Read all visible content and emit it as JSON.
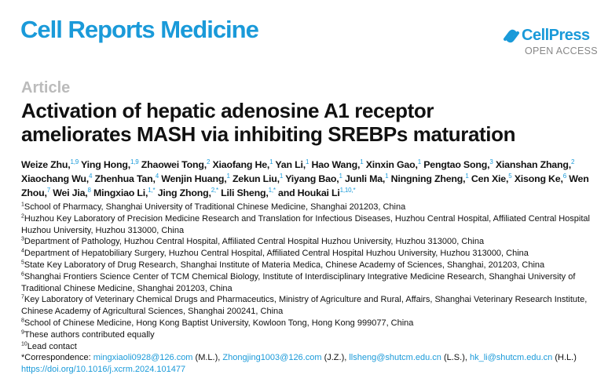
{
  "header": {
    "journal": "Cell Reports Medicine",
    "publisher": "CellPress",
    "access": "OPEN ACCESS",
    "brand_color": "#1a9ad9"
  },
  "article_type": "Article",
  "title_lines": [
    "Activation of hepatic adenosine A1 receptor",
    "ameliorates MASH via inhibiting SREBPs maturation"
  ],
  "authors": [
    {
      "name": "Weize Zhu,",
      "sup": "1,9"
    },
    {
      "name": "Ying Hong,",
      "sup": "1,9"
    },
    {
      "name": "Zhaowei Tong,",
      "sup": "2"
    },
    {
      "name": "Xiaofang He,",
      "sup": "1"
    },
    {
      "name": "Yan Li,",
      "sup": "1"
    },
    {
      "name": "Hao Wang,",
      "sup": "1"
    },
    {
      "name": "Xinxin Gao,",
      "sup": "1"
    },
    {
      "name": "Pengtao Song,",
      "sup": "3"
    },
    {
      "name": "Xianshan Zhang,",
      "sup": "2"
    },
    {
      "name": "Xiaochang Wu,",
      "sup": "4"
    },
    {
      "name": "Zhenhua Tan,",
      "sup": "4"
    },
    {
      "name": "Wenjin Huang,",
      "sup": "1"
    },
    {
      "name": "Zekun Liu,",
      "sup": "1"
    },
    {
      "name": "Yiyang Bao,",
      "sup": "1"
    },
    {
      "name": "Junli Ma,",
      "sup": "1"
    },
    {
      "name": "Ningning Zheng,",
      "sup": "1"
    },
    {
      "name": "Cen Xie,",
      "sup": "5"
    },
    {
      "name": "Xisong Ke,",
      "sup": "6"
    },
    {
      "name": "Wen Zhou,",
      "sup": "7"
    },
    {
      "name": "Wei Jia,",
      "sup": "8"
    },
    {
      "name": "Mingxiao Li,",
      "sup": "1,*"
    },
    {
      "name": "Jing Zhong,",
      "sup": "2,*"
    },
    {
      "name": "Lili Sheng,",
      "sup": "1,*"
    },
    {
      "name": "and Houkai Li",
      "sup": "1,10,*"
    }
  ],
  "affiliations": [
    {
      "num": "1",
      "text": "School of Pharmacy, Shanghai University of Traditional Chinese Medicine, Shanghai 201203, China"
    },
    {
      "num": "2",
      "text": "Huzhou Key Laboratory of Precision Medicine Research and Translation for Infectious Diseases, Huzhou Central Hospital, Affiliated Central Hospital Huzhou University, Huzhou 313000, China"
    },
    {
      "num": "3",
      "text": "Department of Pathology, Huzhou Central Hospital, Affiliated Central Hospital Huzhou University, Huzhou 313000, China"
    },
    {
      "num": "4",
      "text": "Department of Hepatobiliary Surgery, Huzhou Central Hospital, Affiliated Central Hospital Huzhou University, Huzhou 313000, China"
    },
    {
      "num": "5",
      "text": "State Key Laboratory of Drug Research, Shanghai Institute of Materia Medica, Chinese Academy of Sciences, Shanghai, 201203, China"
    },
    {
      "num": "6",
      "text": "Shanghai Frontiers Science Center of TCM Chemical Biology, Institute of Interdisciplinary Integrative Medicine Research, Shanghai University of Traditional Chinese Medicine, Shanghai 201203, China"
    },
    {
      "num": "7",
      "text": "Key Laboratory of Veterinary Chemical Drugs and Pharmaceutics, Ministry of Agriculture and Rural, Affairs, Shanghai Veterinary Research Institute, Chinese Academy of Agricultural Sciences, Shanghai 200241, China"
    },
    {
      "num": "8",
      "text": "School of Chinese Medicine, Hong Kong Baptist University, Kowloon Tong, Hong Kong 999077, China"
    },
    {
      "num": "9",
      "text": "These authors contributed equally"
    },
    {
      "num": "10",
      "text": "Lead contact"
    }
  ],
  "correspondence": {
    "label": "*Correspondence: ",
    "entries": [
      {
        "email": "mingxiaoli0928@126.com",
        "who": " (M.L.), "
      },
      {
        "email": "Zhongjing1003@126.com",
        "who": " (J.Z.), "
      },
      {
        "email": "llsheng@shutcm.edu.cn",
        "who": " (L.S.), "
      },
      {
        "email": "hk_li@shutcm.edu.cn",
        "who": " (H.L.)"
      }
    ]
  },
  "doi": "https://doi.org/10.1016/j.xcrm.2024.101477"
}
